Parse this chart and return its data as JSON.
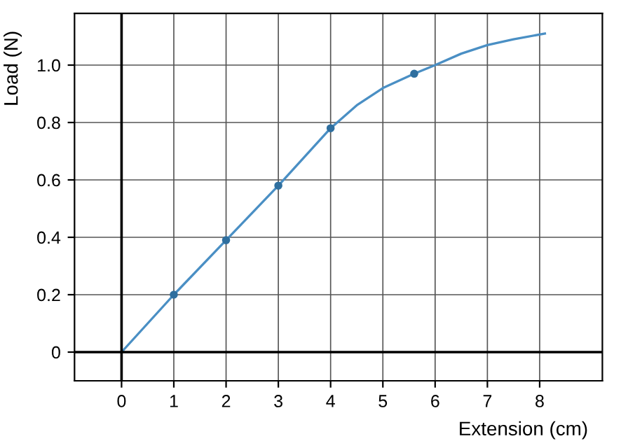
{
  "chart_data": {
    "type": "line",
    "xlabel": "Extension (cm)",
    "ylabel": "Load (N)",
    "series": [
      {
        "type": "line",
        "color": "#4a8fc4",
        "marker": "none",
        "x": [
          0,
          1,
          2,
          3,
          4,
          4.5,
          5,
          5.6,
          6,
          6.5,
          7,
          7.5,
          8.1
        ],
        "values": [
          0,
          0.2,
          0.39,
          0.58,
          0.78,
          0.86,
          0.92,
          0.97,
          1.0,
          1.04,
          1.07,
          1.09,
          1.11
        ]
      },
      {
        "type": "scatter",
        "color": "#2f6f9f",
        "marker": "circle",
        "x": [
          1,
          2,
          3,
          4,
          5.6
        ],
        "values": [
          0.2,
          0.39,
          0.58,
          0.78,
          0.97
        ]
      }
    ],
    "xlim": [
      -0.9,
      9.2
    ],
    "ylim": [
      -0.1,
      1.18
    ],
    "xticks": [
      0,
      1,
      2,
      3,
      4,
      5,
      6,
      7,
      8
    ],
    "yticks": [
      0,
      0.2,
      0.4,
      0.6,
      0.8,
      {
        "value": 1.0,
        "label": "1.0"
      }
    ],
    "grid": true
  }
}
